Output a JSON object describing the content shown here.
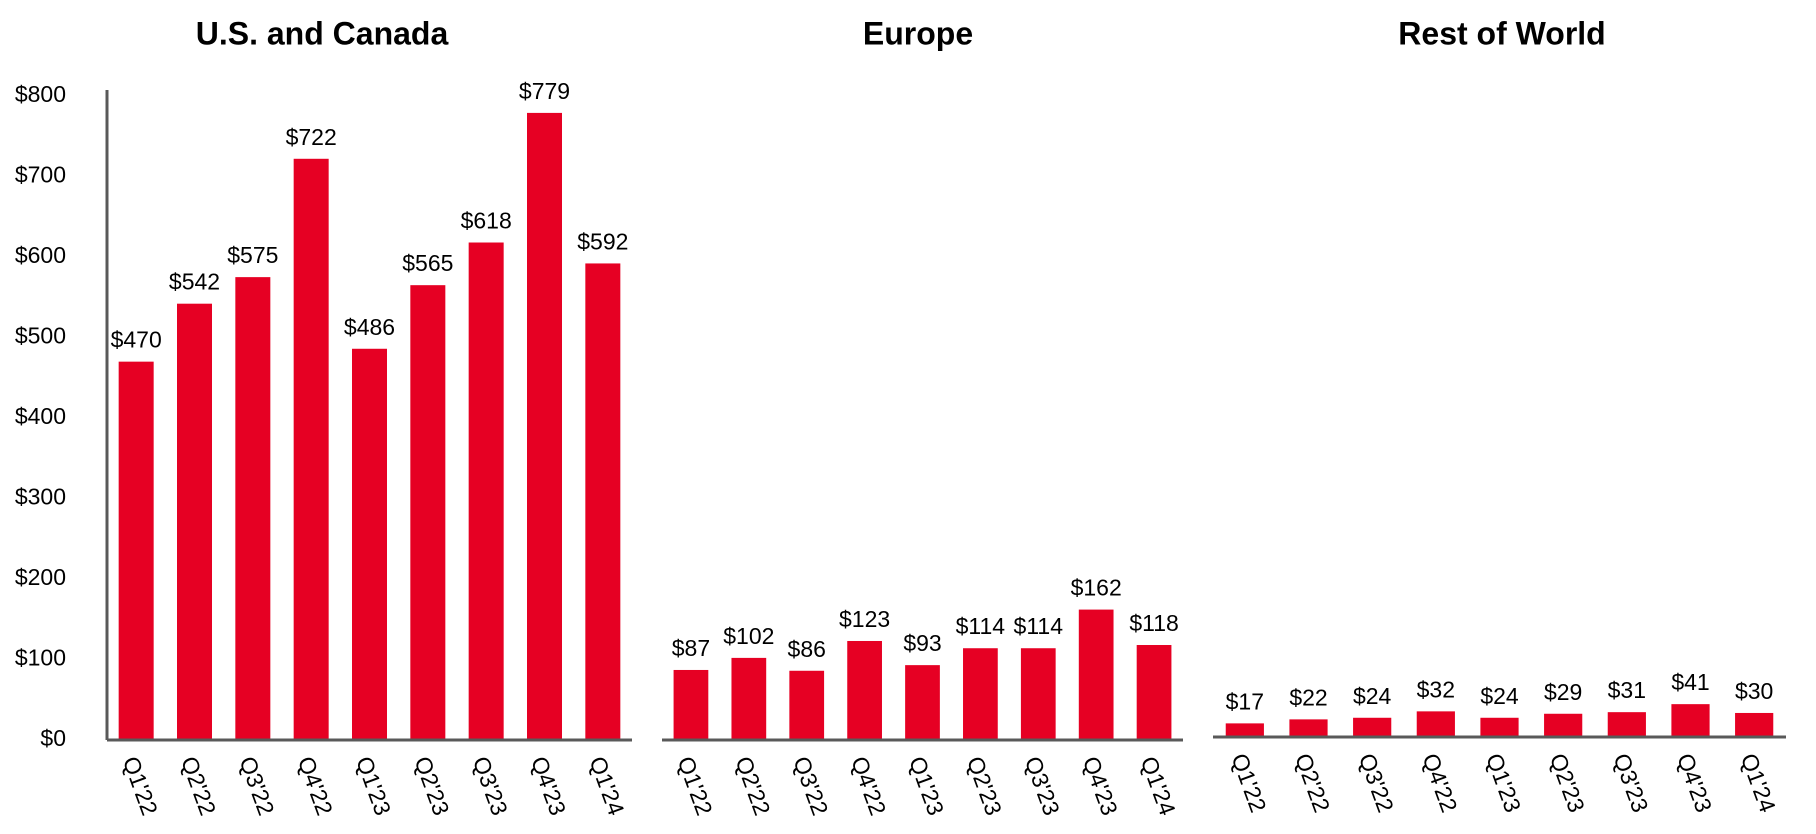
{
  "chart_data": [
    {
      "type": "bar",
      "title": "U.S. and Canada",
      "categories": [
        "Q1'22",
        "Q2'22",
        "Q3'22",
        "Q4'22",
        "Q1'23",
        "Q2'23",
        "Q3'23",
        "Q4'23",
        "Q1'24"
      ],
      "values": [
        470,
        542,
        575,
        722,
        486,
        565,
        618,
        779,
        592
      ],
      "data_labels": [
        "$470",
        "$542",
        "$575",
        "$722",
        "$486",
        "$565",
        "$618",
        "$779",
        "$592"
      ],
      "ylim": [
        0,
        800
      ],
      "yticks": [
        "$0",
        "$100",
        "$200",
        "$300",
        "$400",
        "$500",
        "$600",
        "$700",
        "$800"
      ],
      "xlabel": "",
      "ylabel": "",
      "grid": false
    },
    {
      "type": "bar",
      "title": "Europe",
      "categories": [
        "Q1'22",
        "Q2'22",
        "Q3'22",
        "Q4'22",
        "Q1'23",
        "Q2'23",
        "Q3'23",
        "Q4'23",
        "Q1'24"
      ],
      "values": [
        87,
        102,
        86,
        123,
        93,
        114,
        114,
        162,
        118
      ],
      "data_labels": [
        "$87",
        "$102",
        "$86",
        "$123",
        "$93",
        "$114",
        "$114",
        "$162",
        "$118"
      ],
      "ylim": [
        0,
        800
      ],
      "xlabel": "",
      "ylabel": "",
      "grid": false
    },
    {
      "type": "bar",
      "title": "Rest of World",
      "categories": [
        "Q1'22",
        "Q2'22",
        "Q3'22",
        "Q4'22",
        "Q1'23",
        "Q2'23",
        "Q3'23",
        "Q4'23",
        "Q1'24"
      ],
      "values": [
        17,
        22,
        24,
        32,
        24,
        29,
        31,
        41,
        30
      ],
      "data_labels": [
        "$17",
        "$22",
        "$24",
        "$32",
        "$24",
        "$29",
        "$31",
        "$41",
        "$30"
      ],
      "ylim": [
        0,
        800
      ],
      "xlabel": "",
      "ylabel": "",
      "grid": false
    }
  ],
  "colors": {
    "bar": "#e60023",
    "axis": "#595959",
    "text": "#000000"
  }
}
